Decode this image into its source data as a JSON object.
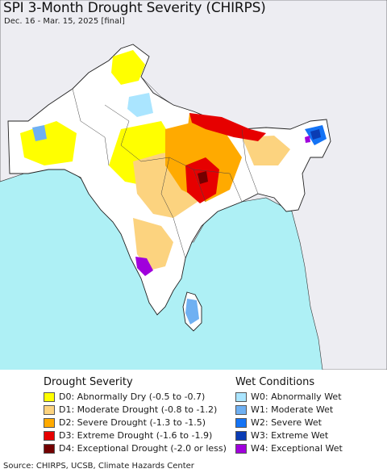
{
  "header": {
    "title": "SPI 3-Month Drought Severity (CHIRPS)",
    "subtitle": "Dec. 16 - Mar. 15, 2025 [final]"
  },
  "legend": {
    "drought_heading": "Drought Severity",
    "wet_heading": "Wet Conditions",
    "drought_items": [
      {
        "code": "D0",
        "label": "D0: Abnormally Dry (-0.5 to -0.7)",
        "color": "#ffff00"
      },
      {
        "code": "D1",
        "label": "D1: Moderate Drought (-0.8 to -1.2)",
        "color": "#fcd37f"
      },
      {
        "code": "D2",
        "label": "D2: Severe Drought (-1.3 to -1.5)",
        "color": "#ffaa00"
      },
      {
        "code": "D3",
        "label": "D3: Extreme Drought (-1.6 to -1.9)",
        "color": "#e60000"
      },
      {
        "code": "D4",
        "label": "D4: Exceptional Drought (-2.0 or less)",
        "color": "#730000"
      }
    ],
    "wet_items": [
      {
        "code": "W0",
        "label": "W0: Abnormally Wet",
        "color": "#aae5ff"
      },
      {
        "code": "W1",
        "label": "W1: Moderate Wet",
        "color": "#6fb0f2"
      },
      {
        "code": "W2",
        "label": "W2: Severe Wet",
        "color": "#1473f5"
      },
      {
        "code": "W3",
        "label": "W3: Extreme Wet",
        "color": "#0a3cb4"
      },
      {
        "code": "W4",
        "label": "W4: Exceptional Wet",
        "color": "#a000dc"
      }
    ]
  },
  "footer": {
    "source": "Source: CHIRPS, UCSB, Climate Hazards Center"
  },
  "map": {
    "ocean_color": "#aef0f5",
    "land_color": "#ffffff",
    "neighbor_land_color": "#ededf2",
    "border_color": "#222222"
  }
}
